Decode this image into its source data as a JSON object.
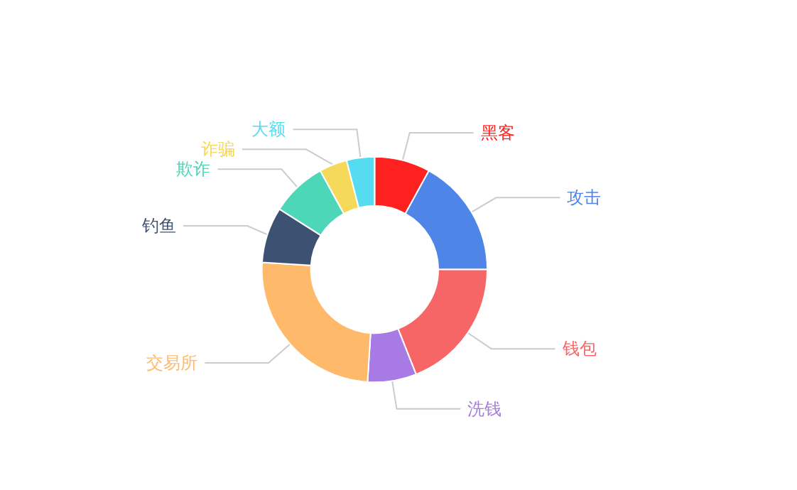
{
  "chart_data": {
    "type": "donut",
    "categories": [
      "黑客",
      "攻击",
      "钱包",
      "洗钱",
      "交易所",
      "钓鱼",
      "欺诈",
      "诈骗",
      "大额"
    ],
    "values": [
      8,
      17,
      19,
      7,
      25,
      8,
      8,
      4,
      4
    ],
    "colors": [
      "#ff2020",
      "#5085e8",
      "#f66666",
      "#a77be3",
      "#ffb96a",
      "#3d5272",
      "#4ed6b8",
      "#f6d95a",
      "#55dcf0"
    ],
    "legend": false
  }
}
